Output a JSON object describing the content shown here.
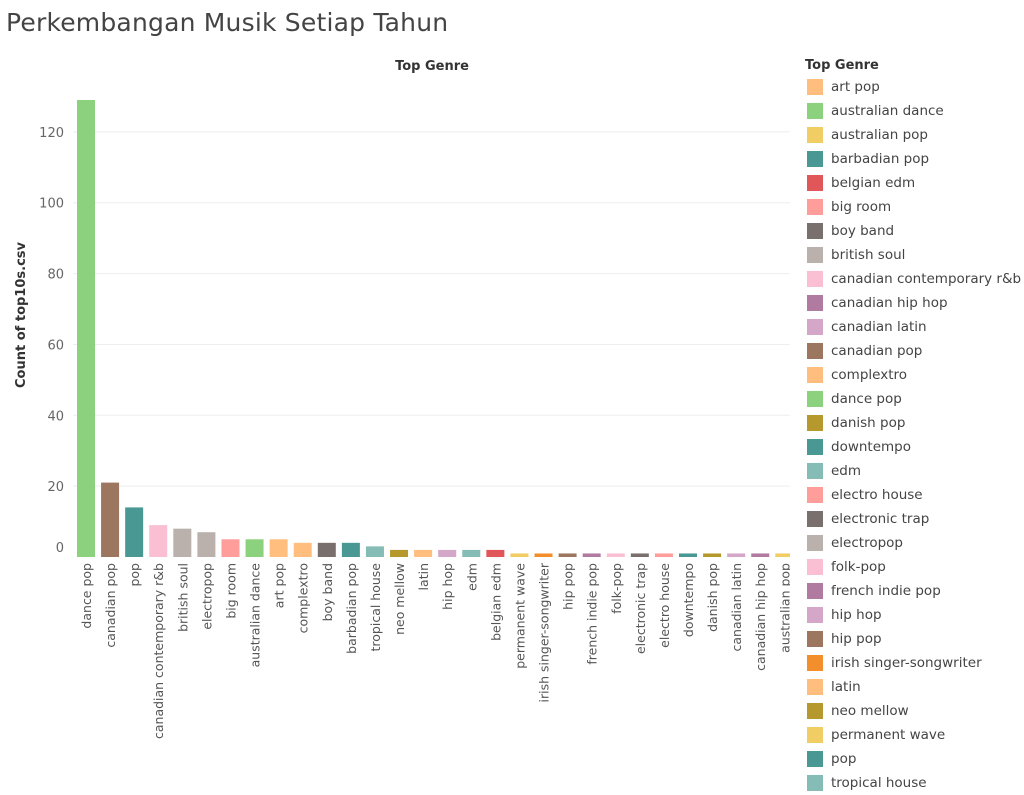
{
  "page": {
    "title": "Perkembangan Musik Setiap Tahun"
  },
  "legend": {
    "title": "Top Genre",
    "items": [
      {
        "label": "art pop",
        "color": "#FFBE7D"
      },
      {
        "label": "australian dance",
        "color": "#8CD17D"
      },
      {
        "label": "australian pop",
        "color": "#F1CE63"
      },
      {
        "label": "barbadian pop",
        "color": "#499894"
      },
      {
        "label": "belgian edm",
        "color": "#E15759"
      },
      {
        "label": "big room",
        "color": "#FF9D9A"
      },
      {
        "label": "boy band",
        "color": "#79706E"
      },
      {
        "label": "british soul",
        "color": "#BAB0AC"
      },
      {
        "label": "canadian contemporary r&b",
        "color": "#FABFD2"
      },
      {
        "label": "canadian hip hop",
        "color": "#B07AA1"
      },
      {
        "label": "canadian latin",
        "color": "#D4A6C8"
      },
      {
        "label": "canadian pop",
        "color": "#9D7660"
      },
      {
        "label": "complextro",
        "color": "#FFBE7D"
      },
      {
        "label": "dance pop",
        "color": "#8CD17D"
      },
      {
        "label": "danish pop",
        "color": "#B6992D"
      },
      {
        "label": "downtempo",
        "color": "#499894"
      },
      {
        "label": "edm",
        "color": "#86BCB6"
      },
      {
        "label": "electro house",
        "color": "#FF9D9A"
      },
      {
        "label": "electronic trap",
        "color": "#79706E"
      },
      {
        "label": "electropop",
        "color": "#BAB0AC"
      },
      {
        "label": "folk-pop",
        "color": "#FABFD2"
      },
      {
        "label": "french indie pop",
        "color": "#B07AA1"
      },
      {
        "label": "hip hop",
        "color": "#D4A6C8"
      },
      {
        "label": "hip pop",
        "color": "#9D7660"
      },
      {
        "label": "irish singer-songwriter",
        "color": "#F28E2B"
      },
      {
        "label": "latin",
        "color": "#FFBE7D"
      },
      {
        "label": "neo mellow",
        "color": "#B6992D"
      },
      {
        "label": "permanent wave",
        "color": "#F1CE63"
      },
      {
        "label": "pop",
        "color": "#499894"
      },
      {
        "label": "tropical house",
        "color": "#86BCB6"
      }
    ]
  },
  "chart_data": {
    "type": "bar",
    "title": "Top Genre",
    "xlabel": "",
    "ylabel": "Count of top10s.csv",
    "ylim": [
      0,
      130
    ],
    "yticks": [
      0,
      20,
      40,
      60,
      80,
      100,
      120
    ],
    "grid": true,
    "legend_position": "right",
    "categories": [
      "dance pop",
      "canadian pop",
      "pop",
      "canadian contemporary r&b",
      "british soul",
      "electropop",
      "big room",
      "australian dance",
      "art pop",
      "complextro",
      "boy band",
      "barbadian pop",
      "tropical house",
      "neo mellow",
      "latin",
      "hip hop",
      "edm",
      "belgian edm",
      "permanent wave",
      "irish singer-songwriter",
      "hip pop",
      "french indie pop",
      "folk-pop",
      "electronic trap",
      "electro house",
      "downtempo",
      "danish pop",
      "canadian latin",
      "canadian hip hop",
      "australian pop"
    ],
    "values": [
      129,
      21,
      14,
      9,
      8,
      7,
      5,
      5,
      5,
      4,
      4,
      4,
      3,
      2,
      2,
      2,
      2,
      2,
      1,
      1,
      1,
      1,
      1,
      1,
      1,
      1,
      1,
      1,
      1,
      1
    ],
    "colors": [
      "#8CD17D",
      "#9D7660",
      "#499894",
      "#FABFD2",
      "#BAB0AC",
      "#BAB0AC",
      "#FF9D9A",
      "#8CD17D",
      "#FFBE7D",
      "#FFBE7D",
      "#79706E",
      "#499894",
      "#86BCB6",
      "#B6992D",
      "#FFBE7D",
      "#D4A6C8",
      "#86BCB6",
      "#E15759",
      "#F1CE63",
      "#F28E2B",
      "#9D7660",
      "#B07AA1",
      "#FABFD2",
      "#79706E",
      "#FF9D9A",
      "#499894",
      "#B6992D",
      "#D4A6C8",
      "#B07AA1",
      "#F1CE63"
    ]
  }
}
